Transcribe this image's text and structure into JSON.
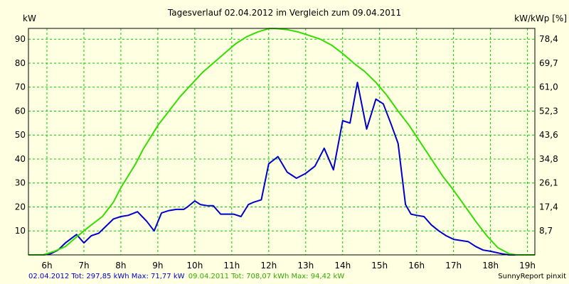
{
  "chart_data": {
    "type": "line",
    "title": "Tagesverlauf 02.04.2012 im Vergleich zum 09.04.2011",
    "ylabel_left": "kW",
    "ylabel_right": "kW/kWp [%]",
    "xlim": [
      5.5,
      19.2
    ],
    "ylim": [
      0,
      94.5
    ],
    "x_ticks": [
      {
        "x": 6,
        "label": "6h"
      },
      {
        "x": 7,
        "label": "7h"
      },
      {
        "x": 8,
        "label": "8h"
      },
      {
        "x": 9,
        "label": "9h"
      },
      {
        "x": 10,
        "label": "10h"
      },
      {
        "x": 11,
        "label": "11h"
      },
      {
        "x": 12,
        "label": "12h"
      },
      {
        "x": 13,
        "label": "13h"
      },
      {
        "x": 14,
        "label": "14h"
      },
      {
        "x": 15,
        "label": "15h"
      },
      {
        "x": 16,
        "label": "16h"
      },
      {
        "x": 17,
        "label": "17h"
      },
      {
        "x": 18,
        "label": "18h"
      },
      {
        "x": 19,
        "label": "19h"
      }
    ],
    "y_ticks_left": [
      {
        "y": 10,
        "label": "10"
      },
      {
        "y": 20,
        "label": "20"
      },
      {
        "y": 30,
        "label": "30"
      },
      {
        "y": 40,
        "label": "40"
      },
      {
        "y": 50,
        "label": "50"
      },
      {
        "y": 60,
        "label": "60"
      },
      {
        "y": 70,
        "label": "70"
      },
      {
        "y": 80,
        "label": "80"
      },
      {
        "y": 90,
        "label": "90"
      }
    ],
    "y_ticks_right": [
      {
        "y": 10,
        "label": "8,7"
      },
      {
        "y": 20,
        "label": "17,4"
      },
      {
        "y": 30,
        "label": "26,1"
      },
      {
        "y": 40,
        "label": "34,8"
      },
      {
        "y": 50,
        "label": "43,6"
      },
      {
        "y": 60,
        "label": "52,3"
      },
      {
        "y": 70,
        "label": "61,0"
      },
      {
        "y": 80,
        "label": "69,7"
      },
      {
        "y": 90,
        "label": "78,4"
      }
    ],
    "grid": true,
    "series": [
      {
        "name": "02.04.2012",
        "color": "#0000cc",
        "x": [
          5.5,
          5.9,
          6.1,
          6.3,
          6.5,
          6.8,
          7.0,
          7.2,
          7.4,
          7.6,
          7.8,
          8.0,
          8.2,
          8.45,
          8.7,
          8.9,
          9.1,
          9.3,
          9.5,
          9.7,
          9.8,
          10.0,
          10.15,
          10.35,
          10.5,
          10.7,
          10.9,
          11.05,
          11.25,
          11.45,
          11.6,
          11.8,
          12.0,
          12.25,
          12.5,
          12.75,
          13.0,
          13.25,
          13.5,
          13.75,
          14.0,
          14.2,
          14.4,
          14.65,
          14.9,
          15.1,
          15.3,
          15.5,
          15.7,
          15.85,
          16.0,
          16.2,
          16.4,
          16.6,
          16.8,
          17.0,
          17.2,
          17.4,
          17.6,
          17.8,
          18.0,
          18.3,
          18.5,
          18.7,
          19.2
        ],
        "values": [
          0,
          0,
          0.5,
          2,
          5,
          8.5,
          5,
          8,
          9,
          12,
          15,
          16,
          16.5,
          18,
          14,
          10,
          17.5,
          18.5,
          19,
          19,
          20,
          22.5,
          21,
          20.5,
          20.5,
          17,
          17,
          17,
          16,
          21,
          22,
          23,
          38,
          41,
          34.5,
          32,
          34,
          37,
          44.5,
          35.5,
          56,
          55,
          72,
          52.5,
          65,
          63,
          55,
          46.5,
          21,
          17,
          16.5,
          16,
          12.5,
          10,
          8,
          6.5,
          6,
          5.5,
          3.5,
          2,
          1.5,
          0.5,
          0,
          0,
          0
        ]
      },
      {
        "name": "09.04.2011",
        "color": "#33dd00",
        "x": [
          5.5,
          5.9,
          6.2,
          6.5,
          6.8,
          7.0,
          7.2,
          7.5,
          7.8,
          8.0,
          8.2,
          8.4,
          8.6,
          8.8,
          9.0,
          9.3,
          9.6,
          9.9,
          10.2,
          10.5,
          10.8,
          11.1,
          11.4,
          11.7,
          12.0,
          12.2,
          12.5,
          12.8,
          13.1,
          13.4,
          13.7,
          14.0,
          14.3,
          14.6,
          14.9,
          15.2,
          15.5,
          15.8,
          16.1,
          16.4,
          16.7,
          17.0,
          17.3,
          17.6,
          17.9,
          18.2,
          18.5,
          18.7,
          18.9,
          19.2
        ],
        "values": [
          0,
          0,
          1.5,
          3.5,
          7.5,
          10,
          12.5,
          16,
          22,
          28,
          33,
          38,
          44,
          49,
          54,
          60,
          66,
          71,
          76,
          80,
          84,
          88,
          91,
          93,
          94.4,
          94.4,
          94,
          93,
          91.5,
          90,
          87.5,
          84,
          80,
          76.5,
          72,
          66.5,
          60,
          54,
          47,
          40,
          33,
          27,
          20.5,
          14,
          8,
          3,
          0.5,
          0,
          0,
          0
        ]
      }
    ],
    "footer": {
      "series1_summary": "02.04.2012 Tot: 297,85 kWh Max: 71,77 kW",
      "series2_summary": "09.04.2011 Tot: 708,07 kWh Max: 94,42 kW",
      "credit": "SunnyReport pinxit"
    }
  }
}
